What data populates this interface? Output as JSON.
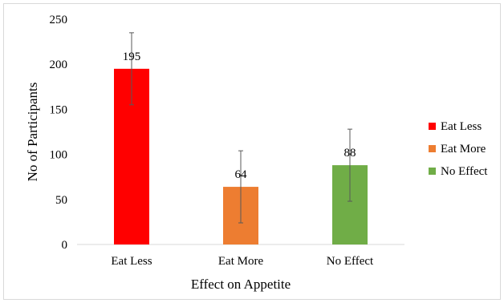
{
  "chart_data": {
    "type": "bar",
    "categories": [
      "Eat Less",
      "Eat More",
      "No Effect"
    ],
    "values": [
      195,
      64,
      88
    ],
    "error_bars": [
      40,
      40,
      40
    ],
    "data_labels": [
      "195",
      "64",
      "88"
    ],
    "colors": [
      "#ff0000",
      "#ed7d31",
      "#70ad47"
    ],
    "xlabel": "Effect on Appetite",
    "ylabel": "No of Participants",
    "ylim": [
      0,
      250
    ],
    "yticks": [
      0,
      50,
      100,
      150,
      200,
      250
    ],
    "ytick_labels": [
      "0",
      "50",
      "100",
      "150",
      "200",
      "250"
    ],
    "grid": false,
    "legend": {
      "position": "right",
      "entries": [
        "Eat Less",
        "Eat More",
        "No Effect"
      ]
    }
  }
}
